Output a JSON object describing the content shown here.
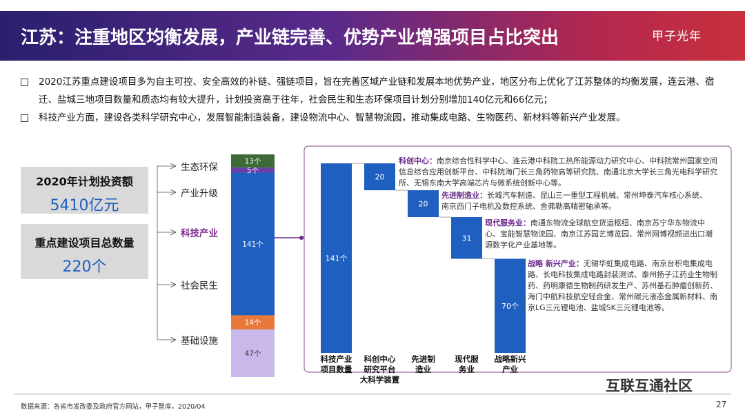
{
  "header": {
    "title": "江苏：注重地区均衡发展，产业链完善、优势产业增强项目占比突出",
    "logo": "甲子光年"
  },
  "bullets": [
    "2020江苏重点建设项目多为自主可控、安全高效的补链、强链项目，旨在完善区域产业链和发展本地优势产业，地区分布上优化了江苏整体的均衡发展，连云港、宿迁、盐城三地项目数量和质态均有较大提升，计划投资高于往年，社会民生和生态环保项目计划分别增加140亿元和66亿元；",
    "科技产业方面，建设各类科学研究中心，发展智能制造装备，建设物流中心、智慧物流园，推动集成电路、生物医药、新材料等新兴产业发展。"
  ],
  "boxes": [
    {
      "label": "2020年计划投资额",
      "value": "5410亿元"
    },
    {
      "label": "重点建设项目总数量",
      "value": "220个"
    }
  ],
  "chart_data": [
    {
      "type": "stacked-bar",
      "categories": [
        "生态环保",
        "产业升级",
        "科技产业",
        "社会民生",
        "基础设施"
      ],
      "values": [
        13,
        5,
        141,
        14,
        47
      ],
      "value_labels": [
        "13个",
        "5个",
        "141个",
        "14个",
        "47个"
      ],
      "colors": [
        "#3d6b35",
        "#6b3fa8",
        "#1f5fbf",
        "#e8793a",
        "#c9b8ea"
      ],
      "label_colors": [
        "#222",
        "#222",
        "#7a2a8a",
        "#222",
        "#222"
      ]
    },
    {
      "type": "waterfall",
      "categories": [
        "科技产业\n项目数量",
        "科创中心\n研究平台\n大科学装置",
        "先进制\n造业",
        "现代服\n务业",
        "战略新兴\n产业"
      ],
      "values": [
        141,
        20,
        20,
        31,
        70
      ],
      "value_labels": [
        "141个",
        "20",
        "20",
        "31",
        "70个"
      ],
      "color": "#1f5fbf",
      "annotations": [
        {
          "heading": "科创中心：",
          "text": "南京综合性科学中心、连云港中科院工热所能源动力研究中心、中科院常州国家空间信息综合应用创新平台、中科院海门长三角药物高等研究院、南通北京大学长三角光电科学研究所、无锡东南大学高端芯片与微系统创新中心等。"
        },
        {
          "heading": "先进制造业：",
          "text": "长城汽车制造、昆山三一重型工程机械、常州坤泰汽车核心系统、南京西门子电机及数控系统、舍弗勒高精密轴承等。"
        },
        {
          "heading": "现代服务业：",
          "text": "南通东物流全球航空货运枢纽、南京苏宁华东物流中心、宝能智慧物流园、南京江苏园艺博览园、常州网博视频进出口潮源数字化产业基地等。"
        },
        {
          "heading": "战略 新兴产业：",
          "text": "无锡华虹集成电路、南京台积电集成电路、长电科技集成电路封装测试、泰州扬子江药业生物制药、药明康德生物制药研发生产、苏州基石肿瘤创新药、海门中航科技航空轻合金、常州碳元液态金属新材料、南京LG三元锂电池、盐城SK三元锂电池等。"
        }
      ]
    }
  ],
  "footer": {
    "source": "数据来源：各省市发改委及政府官方网站，甲子智库，2020/04",
    "page": "27",
    "watermark": "互联互通社区"
  }
}
